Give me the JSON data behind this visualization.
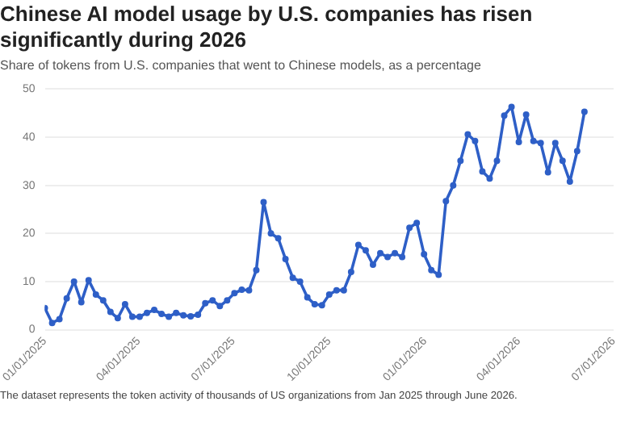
{
  "chart_data": {
    "type": "line",
    "title": "Chinese AI model usage by U.S. companies has risen significantly during 2026",
    "subtitle": "Share of tokens from U.S. companies that went to Chinese models, as a percentage",
    "annotations": [
      "The dataset represents the token activity of thousands of US organizations from Jan 2025 through June 2026."
    ],
    "x": [
      "2025-01-01",
      "2025-01-08",
      "2025-01-15",
      "2025-01-22",
      "2025-01-29",
      "2025-02-05",
      "2025-02-12",
      "2025-02-19",
      "2025-02-26",
      "2025-03-05",
      "2025-03-12",
      "2025-03-19",
      "2025-03-26",
      "2025-04-02",
      "2025-04-09",
      "2025-04-16",
      "2025-04-23",
      "2025-04-30",
      "2025-05-07",
      "2025-05-14",
      "2025-05-21",
      "2025-05-28",
      "2025-06-04",
      "2025-06-11",
      "2025-06-18",
      "2025-06-25",
      "2025-07-02",
      "2025-07-09",
      "2025-07-16",
      "2025-07-23",
      "2025-07-30",
      "2025-08-06",
      "2025-08-13",
      "2025-08-20",
      "2025-08-27",
      "2025-09-03",
      "2025-09-10",
      "2025-09-17",
      "2025-09-24",
      "2025-10-01",
      "2025-10-08",
      "2025-10-15",
      "2025-10-22",
      "2025-10-29",
      "2025-11-05",
      "2025-11-12",
      "2025-11-19",
      "2025-11-26",
      "2025-12-03",
      "2025-12-10",
      "2025-12-17",
      "2025-12-24",
      "2025-12-31",
      "2026-01-07",
      "2026-01-14",
      "2026-01-21",
      "2026-01-28",
      "2026-02-04",
      "2026-02-11",
      "2026-02-18",
      "2026-02-25",
      "2026-03-04",
      "2026-03-11",
      "2026-03-18",
      "2026-03-25",
      "2026-04-01",
      "2026-04-08",
      "2026-04-15",
      "2026-04-22",
      "2026-04-29",
      "2026-05-06",
      "2026-05-13",
      "2026-05-20",
      "2026-05-27",
      "2026-06-03"
    ],
    "series": [
      {
        "color": "#2e5fc7",
        "values": [
          4.5,
          1.4,
          2.2,
          6.5,
          10,
          5.7,
          10.3,
          7.3,
          6.1,
          3.7,
          2.4,
          5.3,
          2.7,
          2.7,
          3.5,
          4.1,
          3.3,
          2.7,
          3.5,
          3.0,
          2.8,
          3.1,
          5.5,
          6.1,
          4.9,
          6.1,
          7.6,
          8.3,
          8.2,
          12.4,
          26.5,
          20,
          19,
          14.7,
          10.8,
          10,
          6.7,
          5.3,
          5.1,
          7.3,
          8.2,
          8.2,
          12,
          17.6,
          16.5,
          13.5,
          15.9,
          15.1,
          15.9,
          15.1,
          21.2,
          22.2,
          15.7,
          12.4,
          11.4,
          26.7,
          30,
          35.1,
          40.6,
          39.2,
          32.9,
          31.4,
          35.1,
          44.5,
          46.3,
          39,
          44.7,
          39.2,
          38.8,
          32.7,
          38.8,
          35.1,
          30.8,
          37.1,
          45.3
        ]
      }
    ],
    "xlim": [
      "2025-01-01",
      "2026-07-01"
    ],
    "xticks": [
      {
        "value": "2025-01-01",
        "label": "01/01/2025"
      },
      {
        "value": "2025-04-01",
        "label": "04/01/2025"
      },
      {
        "value": "2025-07-01",
        "label": "07/01/2025"
      },
      {
        "value": "2025-10-01",
        "label": "10/01/2025"
      },
      {
        "value": "2026-01-01",
        "label": "01/01/2026"
      },
      {
        "value": "2026-04-01",
        "label": "04/01/2026"
      },
      {
        "value": "2026-07-01",
        "label": "07/01/2026"
      }
    ],
    "ylim": [
      0,
      50
    ],
    "yticks": [
      0,
      10,
      20,
      30,
      40,
      50
    ],
    "grid": "y",
    "legend": false,
    "marker": "circle",
    "line_style": "solid"
  }
}
